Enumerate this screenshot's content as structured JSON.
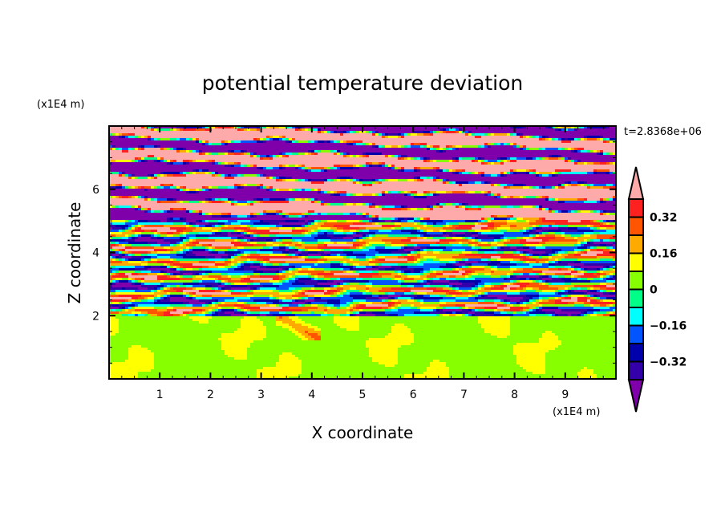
{
  "chart_data": {
    "type": "heatmap",
    "title": "potential temperature deviation",
    "xlabel": "X coordinate",
    "ylabel": "Z coordinate",
    "x_unit": "(x1E4 m)",
    "y_unit": "(x1E4 m)",
    "time_label": "t=2.8368e+06",
    "xlim": [
      0,
      10
    ],
    "ylim": [
      0,
      8
    ],
    "x_ticks": [
      "1",
      "2",
      "3",
      "4",
      "5",
      "6",
      "7",
      "8",
      "9"
    ],
    "y_ticks": [
      "2",
      "4",
      "6"
    ],
    "levels": [
      -0.4,
      -0.32,
      -0.24,
      -0.16,
      -0.08,
      0,
      0.08,
      0.16,
      0.24,
      0.32,
      0.4
    ],
    "colors": [
      "#7f00aa",
      "#3300aa",
      "#0000aa",
      "#0055ff",
      "#00ffff",
      "#00ff88",
      "#88ff00",
      "#ffff00",
      "#ffaa00",
      "#ff5500",
      "#ff2020",
      "#ffaaaa"
    ],
    "colorbar_labels": [
      {
        "value": 0.32,
        "text": "0.32"
      },
      {
        "value": 0.16,
        "text": "0.16"
      },
      {
        "value": 0,
        "text": "0"
      },
      {
        "value": -0.16,
        "text": "−0.16"
      },
      {
        "value": -0.32,
        "text": "−0.32"
      }
    ],
    "field_description_layers": [
      {
        "z_range": [
          0,
          2
        ],
        "regime": "weak near-zero deviation (0 to 0.08)"
      },
      {
        "z_range": [
          2,
          5
        ],
        "regime": "mixed thin layers ±0.4"
      },
      {
        "z_range": [
          5,
          8
        ],
        "regime": "saturated alternating bands beyond ±0.4"
      }
    ]
  }
}
